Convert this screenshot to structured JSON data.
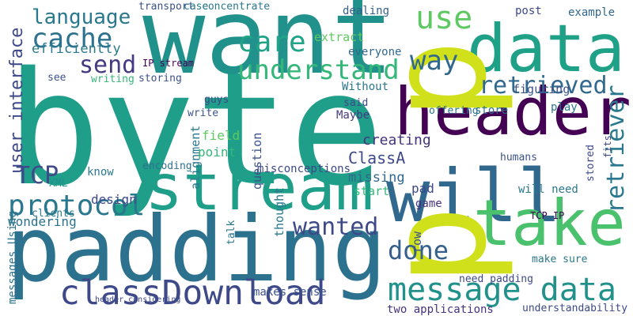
{
  "words": [
    "byte",
    "want",
    "padding",
    "stream",
    "header",
    "will",
    "data",
    "take",
    "p",
    "p",
    "message data",
    "classDownload",
    "protocol",
    "TCP",
    "user interface",
    "retrieved",
    "retriever",
    "understand",
    "care",
    "use",
    "cache",
    "send",
    "language",
    "way",
    "done",
    "wanted",
    "efficiently",
    "creating",
    "ClassA",
    "missing",
    "transport",
    "case",
    "concentrate",
    "dealing",
    "post",
    "example",
    "extract",
    "everyone",
    "IP stream",
    "storing",
    "Without",
    "said",
    "writing",
    "see",
    "guys",
    "write",
    "alignment",
    "question",
    "Maybe",
    "field",
    "point",
    "encoding",
    "misconceptions",
    "start",
    "game",
    "pad",
    "know",
    "XML",
    "clients",
    "design",
    "wondering",
    "figuring",
    "play",
    "store",
    "offering",
    "stored",
    "row",
    "thought",
    "makes sense",
    "two applications",
    "understandability",
    "need padding",
    "make sure",
    "TCP IP",
    "will need",
    "humans",
    "messages Using",
    "header considering",
    "talk",
    "fits"
  ]
}
